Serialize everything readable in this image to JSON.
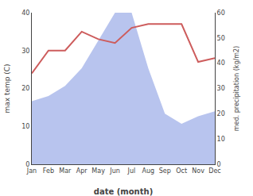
{
  "chart_data": {
    "type": "line",
    "xlabel": "date (month)",
    "ylabel": "max temp (C)",
    "y2label": "med. precipitation (kg/m2)",
    "categories": [
      "Jan",
      "Feb",
      "Mar",
      "Apr",
      "May",
      "Jun",
      "Jul",
      "Aug",
      "Sep",
      "Oct",
      "Nov",
      "Dec"
    ],
    "series": [
      {
        "type": "area",
        "axis": "y2",
        "color": "#b8c4ee",
        "values": [
          25,
          27,
          31,
          38,
          49,
          60,
          60,
          38,
          20,
          16,
          19,
          21
        ]
      },
      {
        "type": "line",
        "color": "#cd5c5c",
        "values": [
          24,
          30,
          30,
          35,
          33,
          32,
          36,
          37,
          37,
          37,
          27,
          28
        ]
      }
    ],
    "ylim": [
      0,
      40
    ],
    "yticks": [
      0,
      10,
      20,
      30,
      40
    ],
    "y2lim": [
      0,
      60
    ],
    "y2ticks": [
      0,
      10,
      20,
      30,
      40,
      50,
      60
    ],
    "grid": false
  }
}
